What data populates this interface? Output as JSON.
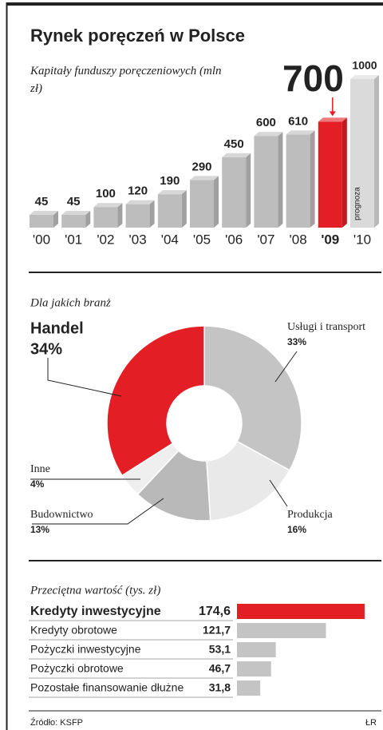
{
  "title": "Rynek poręczeń w Polsce",
  "source": "Źródło: KSFP",
  "credit": "ŁR",
  "chart_data": [
    {
      "type": "bar3d",
      "subtitle": "Kapitały funduszy poręczeniowych (mln zł)",
      "categories": [
        "'00",
        "'01",
        "'02",
        "'03",
        "'04",
        "'05",
        "'06",
        "'07",
        "'08",
        "'09",
        "'10"
      ],
      "values": [
        45,
        45,
        100,
        120,
        190,
        290,
        450,
        600,
        610,
        700,
        1000
      ],
      "colors": [
        "#bdbdbd",
        "#bdbdbd",
        "#bdbdbd",
        "#bdbdbd",
        "#bdbdbd",
        "#bdbdbd",
        "#bdbdbd",
        "#bdbdbd",
        "#bdbdbd",
        "#e31e24",
        "#dadada"
      ],
      "highlight_color": "#e31e24",
      "forecast_color": "#dadada",
      "annotation": "prognoza"
    },
    {
      "type": "donut",
      "title": "Dla jakich branż",
      "categories": [
        "Usługi i transport",
        "Produkcja",
        "Budownictwo",
        "Inne",
        "Handel"
      ],
      "values": [
        33,
        16,
        13,
        4,
        34
      ],
      "value_labels": [
        "33%",
        "16%",
        "13%",
        "4%",
        "34%"
      ],
      "colors": [
        "#c4c4c4",
        "#e9e9e9",
        "#b9b9b9",
        "#efefef",
        "#e31e24"
      ],
      "highlight_color": "#e31e24"
    },
    {
      "type": "hbar",
      "title": "Przeciętna wartość (tys. zł)",
      "categories": [
        "Kredyty inwestycyjne",
        "Kredyty obrotowe",
        "Pożyczki inwestycyjne",
        "Pożyczki obrotowe",
        "Pozostałe finansowanie dłużne"
      ],
      "values": [
        174.6,
        121.7,
        53.1,
        46.7,
        31.8
      ],
      "value_labels": [
        "174,6",
        "121,7",
        "53,1",
        "46,7",
        "31,8"
      ],
      "colors": [
        "#e31e24",
        "#c4c4c4",
        "#c4c4c4",
        "#c4c4c4",
        "#c4c4c4"
      ],
      "highlight_color": "#e31e24"
    }
  ]
}
